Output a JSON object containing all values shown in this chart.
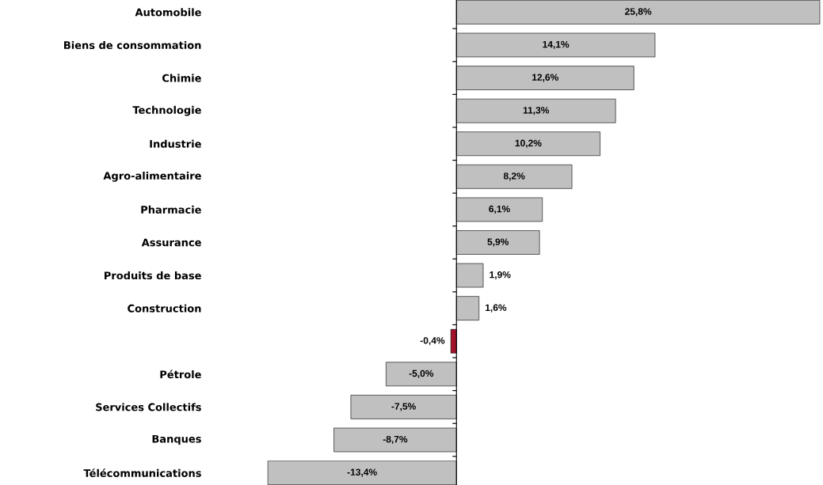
{
  "chart_data": {
    "type": "bar",
    "orientation": "horizontal",
    "categories": [
      "Automobile",
      "Biens de consommation",
      "Chimie",
      "Technologie",
      "Industrie",
      "Agro-alimentaire",
      "Pharmacie",
      "Assurance",
      "Produits de base",
      "Construction",
      null,
      "Pétrole",
      "Services Collectifs",
      "Banques",
      "Télécommunications"
    ],
    "values": [
      25.8,
      14.1,
      12.6,
      11.3,
      10.2,
      8.2,
      6.1,
      5.9,
      1.9,
      1.6,
      -0.4,
      -5.0,
      -7.5,
      -8.7,
      -13.4
    ],
    "colors": [
      "#c0c0c0",
      "#c0c0c0",
      "#c0c0c0",
      "#c0c0c0",
      "#c0c0c0",
      "#c0c0c0",
      "#c0c0c0",
      "#c0c0c0",
      "#c0c0c0",
      "#c0c0c0",
      "#a3142b",
      "#c0c0c0",
      "#c0c0c0",
      "#c0c0c0",
      "#c0c0c0"
    ],
    "value_labels": [
      "25,8%",
      "14,1%",
      "12,6%",
      "11,3%",
      "10,2%",
      "8,2%",
      "6,1%",
      "5,9%",
      "1,9%",
      "1,6%",
      "-0,4%",
      "-5,0%",
      "-7,5%",
      "-8,7%",
      "-13,4%"
    ]
  }
}
